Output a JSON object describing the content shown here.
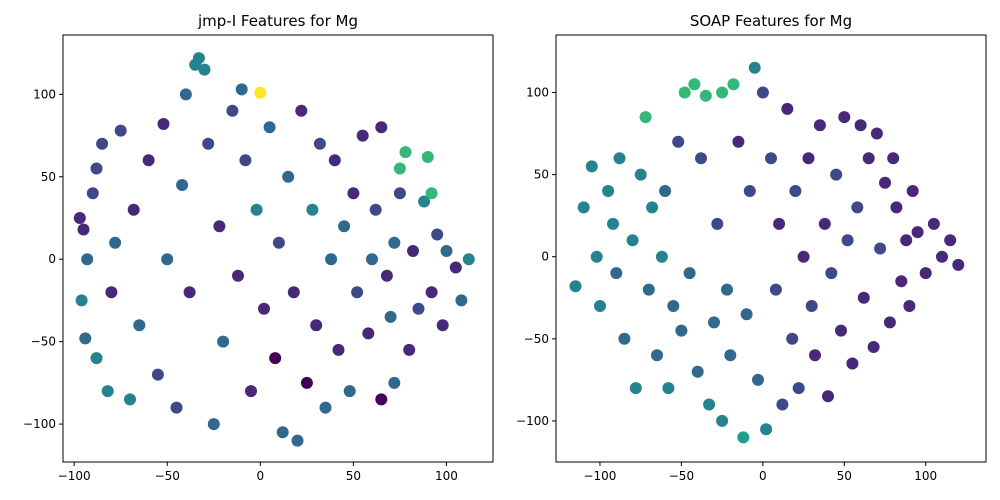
{
  "chart_data": [
    {
      "type": "scatter",
      "title": "jmp-I Features for Mg",
      "xlabel": "",
      "ylabel": "",
      "xlim": [
        -106,
        125
      ],
      "ylim": [
        -123,
        136
      ],
      "xticks": [
        -100,
        -50,
        0,
        50,
        100
      ],
      "yticks": [
        -100,
        -50,
        0,
        50,
        100
      ],
      "xtick_labels": [
        "−100",
        "−50",
        "0",
        "50",
        "100"
      ],
      "ytick_labels": [
        "−100",
        "−50",
        "0",
        "50",
        "100"
      ],
      "grid": false,
      "legend": "none",
      "colormap": "viridis",
      "points": [
        [
          -97,
          25,
          0.15
        ],
        [
          -95,
          18,
          0.12
        ],
        [
          -93,
          0,
          0.35
        ],
        [
          -96,
          -25,
          0.4
        ],
        [
          -94,
          -48,
          0.38
        ],
        [
          -90,
          40,
          0.2
        ],
        [
          -88,
          55,
          0.25
        ],
        [
          -85,
          70,
          0.18
        ],
        [
          -88,
          -60,
          0.42
        ],
        [
          -82,
          -80,
          0.4
        ],
        [
          -80,
          -20,
          0.1
        ],
        [
          -78,
          10,
          0.3
        ],
        [
          -75,
          78,
          0.2
        ],
        [
          -70,
          -85,
          0.45
        ],
        [
          -68,
          30,
          0.12
        ],
        [
          -65,
          -40,
          0.32
        ],
        [
          -60,
          60,
          0.1
        ],
        [
          -55,
          -70,
          0.2
        ],
        [
          -52,
          82,
          0.15
        ],
        [
          -50,
          0,
          0.38
        ],
        [
          -45,
          -90,
          0.25
        ],
        [
          -42,
          45,
          0.3
        ],
        [
          -40,
          100,
          0.3
        ],
        [
          -38,
          -20,
          0.1
        ],
        [
          -35,
          118,
          0.45
        ],
        [
          -33,
          122,
          0.42
        ],
        [
          -30,
          115,
          0.4
        ],
        [
          -28,
          70,
          0.2
        ],
        [
          -25,
          -100,
          0.3
        ],
        [
          -22,
          20,
          0.12
        ],
        [
          -20,
          -50,
          0.35
        ],
        [
          -15,
          90,
          0.22
        ],
        [
          -12,
          -10,
          0.08
        ],
        [
          -10,
          103,
          0.3
        ],
        [
          -8,
          60,
          0.25
        ],
        [
          -5,
          -80,
          0.1
        ],
        [
          -2,
          30,
          0.4
        ],
        [
          0,
          101,
          1.0
        ],
        [
          2,
          -30,
          0.15
        ],
        [
          5,
          80,
          0.3
        ],
        [
          8,
          -60,
          0.05
        ],
        [
          10,
          10,
          0.2
        ],
        [
          12,
          -105,
          0.3
        ],
        [
          15,
          50,
          0.38
        ],
        [
          18,
          -20,
          0.1
        ],
        [
          20,
          -110,
          0.35
        ],
        [
          22,
          90,
          0.12
        ],
        [
          25,
          -75,
          0.05
        ],
        [
          28,
          30,
          0.4
        ],
        [
          30,
          -40,
          0.1
        ],
        [
          32,
          70,
          0.2
        ],
        [
          35,
          -90,
          0.3
        ],
        [
          38,
          0,
          0.38
        ],
        [
          40,
          60,
          0.15
        ],
        [
          42,
          -55,
          0.12
        ],
        [
          45,
          20,
          0.3
        ],
        [
          48,
          -80,
          0.35
        ],
        [
          50,
          40,
          0.1
        ],
        [
          52,
          -20,
          0.25
        ],
        [
          55,
          75,
          0.15
        ],
        [
          58,
          -45,
          0.1
        ],
        [
          60,
          0,
          0.38
        ],
        [
          62,
          30,
          0.2
        ],
        [
          65,
          -85,
          0.05
        ],
        [
          65,
          80,
          0.12
        ],
        [
          68,
          -10,
          0.15
        ],
        [
          70,
          -35,
          0.3
        ],
        [
          72,
          10,
          0.38
        ],
        [
          72,
          -75,
          0.32
        ],
        [
          75,
          55,
          0.7
        ],
        [
          75,
          40,
          0.25
        ],
        [
          78,
          65,
          0.72
        ],
        [
          80,
          -55,
          0.1
        ],
        [
          82,
          5,
          0.15
        ],
        [
          85,
          -30,
          0.2
        ],
        [
          88,
          35,
          0.4
        ],
        [
          90,
          62,
          0.72
        ],
        [
          92,
          40,
          0.7
        ],
        [
          92,
          -20,
          0.1
        ],
        [
          95,
          15,
          0.2
        ],
        [
          98,
          -40,
          0.1
        ],
        [
          100,
          5,
          0.3
        ],
        [
          105,
          -5,
          0.15
        ],
        [
          108,
          -25,
          0.38
        ],
        [
          112,
          0,
          0.4
        ]
      ]
    },
    {
      "type": "scatter",
      "title": "SOAP Features for Mg",
      "xlabel": "",
      "ylabel": "",
      "xlim": [
        -127,
        137
      ],
      "ylim": [
        -125,
        135
      ],
      "xticks": [
        -100,
        -50,
        0,
        50,
        100
      ],
      "yticks": [
        -100,
        -50,
        0,
        50,
        100
      ],
      "xtick_labels": [
        "−100",
        "−50",
        "0",
        "50",
        "100"
      ],
      "ytick_labels": [
        "−100",
        "−50",
        "0",
        "50",
        "100"
      ],
      "grid": false,
      "legend": "none",
      "colormap": "viridis",
      "points": [
        [
          -115,
          -18,
          0.45
        ],
        [
          -110,
          30,
          0.42
        ],
        [
          -105,
          55,
          0.4
        ],
        [
          -102,
          0,
          0.45
        ],
        [
          -100,
          -30,
          0.4
        ],
        [
          -95,
          40,
          0.42
        ],
        [
          -92,
          20,
          0.45
        ],
        [
          -90,
          -10,
          0.38
        ],
        [
          -88,
          60,
          0.4
        ],
        [
          -85,
          -50,
          0.35
        ],
        [
          -80,
          10,
          0.4
        ],
        [
          -78,
          -80,
          0.4
        ],
        [
          -75,
          50,
          0.42
        ],
        [
          -72,
          85,
          0.72
        ],
        [
          -70,
          -20,
          0.38
        ],
        [
          -68,
          30,
          0.4
        ],
        [
          -65,
          -60,
          0.35
        ],
        [
          -62,
          0,
          0.4
        ],
        [
          -60,
          40,
          0.38
        ],
        [
          -58,
          -80,
          0.42
        ],
        [
          -55,
          -30,
          0.35
        ],
        [
          -52,
          70,
          0.2
        ],
        [
          -50,
          -45,
          0.32
        ],
        [
          -48,
          100,
          0.7
        ],
        [
          -45,
          -10,
          0.3
        ],
        [
          -42,
          105,
          0.72
        ],
        [
          -40,
          -70,
          0.35
        ],
        [
          -38,
          60,
          0.18
        ],
        [
          -35,
          98,
          0.72
        ],
        [
          -33,
          -90,
          0.4
        ],
        [
          -30,
          -40,
          0.3
        ],
        [
          -28,
          20,
          0.25
        ],
        [
          -25,
          100,
          0.7
        ],
        [
          -25,
          -100,
          0.42
        ],
        [
          -22,
          -20,
          0.35
        ],
        [
          -20,
          -60,
          0.3
        ],
        [
          -18,
          105,
          0.72
        ],
        [
          -15,
          70,
          0.15
        ],
        [
          -12,
          -110,
          0.55
        ],
        [
          -10,
          -35,
          0.32
        ],
        [
          -8,
          40,
          0.2
        ],
        [
          -5,
          115,
          0.4
        ],
        [
          -3,
          -75,
          0.3
        ],
        [
          0,
          100,
          0.2
        ],
        [
          2,
          -105,
          0.42
        ],
        [
          5,
          60,
          0.18
        ],
        [
          8,
          -20,
          0.2
        ],
        [
          10,
          20,
          0.15
        ],
        [
          12,
          -90,
          0.25
        ],
        [
          15,
          90,
          0.1
        ],
        [
          18,
          -50,
          0.2
        ],
        [
          20,
          40,
          0.18
        ],
        [
          22,
          -80,
          0.2
        ],
        [
          25,
          0,
          0.15
        ],
        [
          28,
          60,
          0.1
        ],
        [
          30,
          -30,
          0.18
        ],
        [
          32,
          -60,
          0.1
        ],
        [
          35,
          80,
          0.12
        ],
        [
          38,
          20,
          0.15
        ],
        [
          40,
          -85,
          0.1
        ],
        [
          42,
          -10,
          0.18
        ],
        [
          45,
          50,
          0.2
        ],
        [
          48,
          -45,
          0.12
        ],
        [
          50,
          85,
          0.1
        ],
        [
          52,
          10,
          0.2
        ],
        [
          55,
          -65,
          0.15
        ],
        [
          58,
          30,
          0.18
        ],
        [
          60,
          80,
          0.1
        ],
        [
          62,
          -25,
          0.15
        ],
        [
          65,
          60,
          0.12
        ],
        [
          68,
          -55,
          0.1
        ],
        [
          70,
          75,
          0.15
        ],
        [
          72,
          5,
          0.2
        ],
        [
          75,
          45,
          0.12
        ],
        [
          78,
          -40,
          0.1
        ],
        [
          80,
          60,
          0.12
        ],
        [
          82,
          30,
          0.15
        ],
        [
          85,
          -15,
          0.1
        ],
        [
          88,
          10,
          0.12
        ],
        [
          90,
          -30,
          0.15
        ],
        [
          92,
          40,
          0.1
        ],
        [
          95,
          15,
          0.12
        ],
        [
          100,
          -10,
          0.1
        ],
        [
          105,
          20,
          0.15
        ],
        [
          110,
          0,
          0.12
        ],
        [
          115,
          10,
          0.1
        ],
        [
          120,
          -5,
          0.12
        ]
      ]
    }
  ]
}
